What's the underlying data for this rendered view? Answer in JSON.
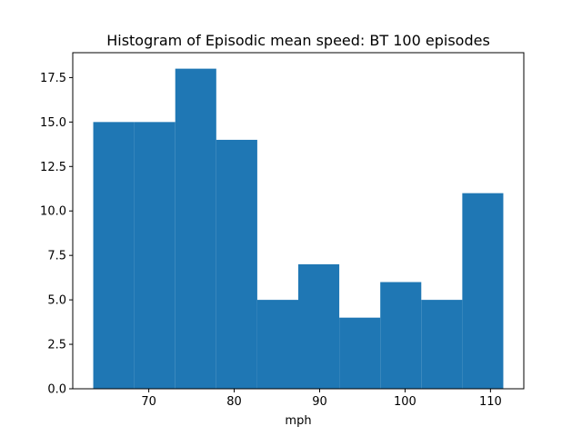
{
  "chart_data": {
    "type": "bar",
    "title": "Histogram of Episodic mean speed: BT 100 episodes",
    "xlabel": "mph",
    "ylabel": "",
    "bin_edges": [
      63.5,
      68.3,
      73.1,
      77.9,
      82.7,
      87.5,
      92.3,
      97.1,
      101.9,
      106.7,
      111.5
    ],
    "values": [
      15,
      15,
      18,
      14,
      5,
      7,
      4,
      6,
      5,
      11
    ],
    "xlim": [
      61.1,
      113.9
    ],
    "ylim": [
      0,
      18.9
    ],
    "xticks": [
      70,
      80,
      90,
      100,
      110
    ],
    "xtick_labels": [
      "70",
      "80",
      "90",
      "100",
      "110"
    ],
    "yticks": [
      0,
      2.5,
      5,
      7.5,
      10,
      12.5,
      15,
      17.5
    ],
    "ytick_labels": [
      "0.0",
      "2.5",
      "5.0",
      "7.5",
      "10.0",
      "12.5",
      "15.0",
      "17.5"
    ],
    "bar_color": "#1f77b4",
    "grid": false,
    "legend": false
  }
}
